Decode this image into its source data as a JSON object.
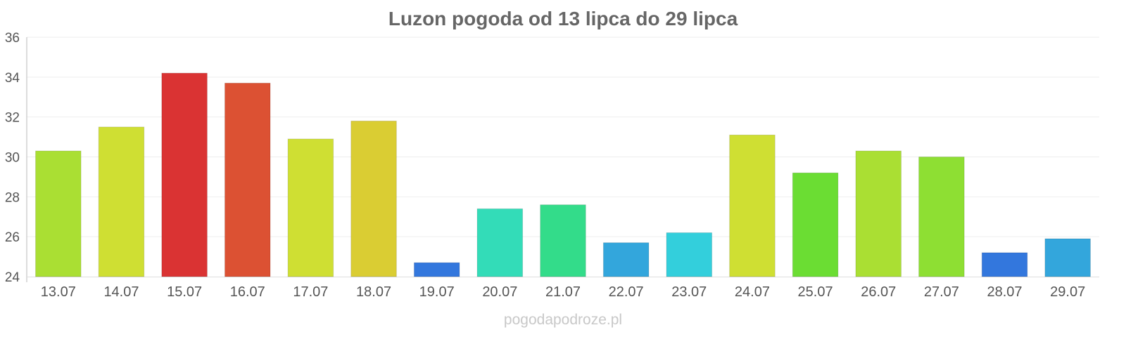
{
  "chart_data": {
    "type": "bar",
    "title": "Luzon pogoda od 13 lipca do 29 lipca",
    "xlabel": "",
    "ylabel": "",
    "ylim": [
      24,
      36
    ],
    "yticks": [
      "24",
      "26",
      "28",
      "30",
      "32",
      "34",
      "36"
    ],
    "grid": true,
    "categories": [
      "13.07",
      "14.07",
      "15.07",
      "16.07",
      "17.07",
      "18.07",
      "19.07",
      "20.07",
      "21.07",
      "22.07",
      "23.07",
      "24.07",
      "25.07",
      "26.07",
      "27.07",
      "28.07",
      "29.07"
    ],
    "values": [
      30.3,
      31.5,
      34.2,
      33.7,
      30.9,
      31.8,
      24.7,
      27.4,
      27.6,
      25.7,
      26.2,
      31.1,
      29.2,
      30.3,
      30.0,
      25.2,
      25.9
    ],
    "colors": [
      "#aadf33",
      "#cfdf33",
      "#da3333",
      "#dc5133",
      "#cfdf33",
      "#dacd33",
      "#3377dd",
      "#33dcb8",
      "#33dc8a",
      "#33a6dc",
      "#33cfdc",
      "#cfdf33",
      "#6bdd33",
      "#aadf33",
      "#8edf33",
      "#3377dd",
      "#33a6dc"
    ]
  },
  "watermark": "pogodapodroze.pl"
}
